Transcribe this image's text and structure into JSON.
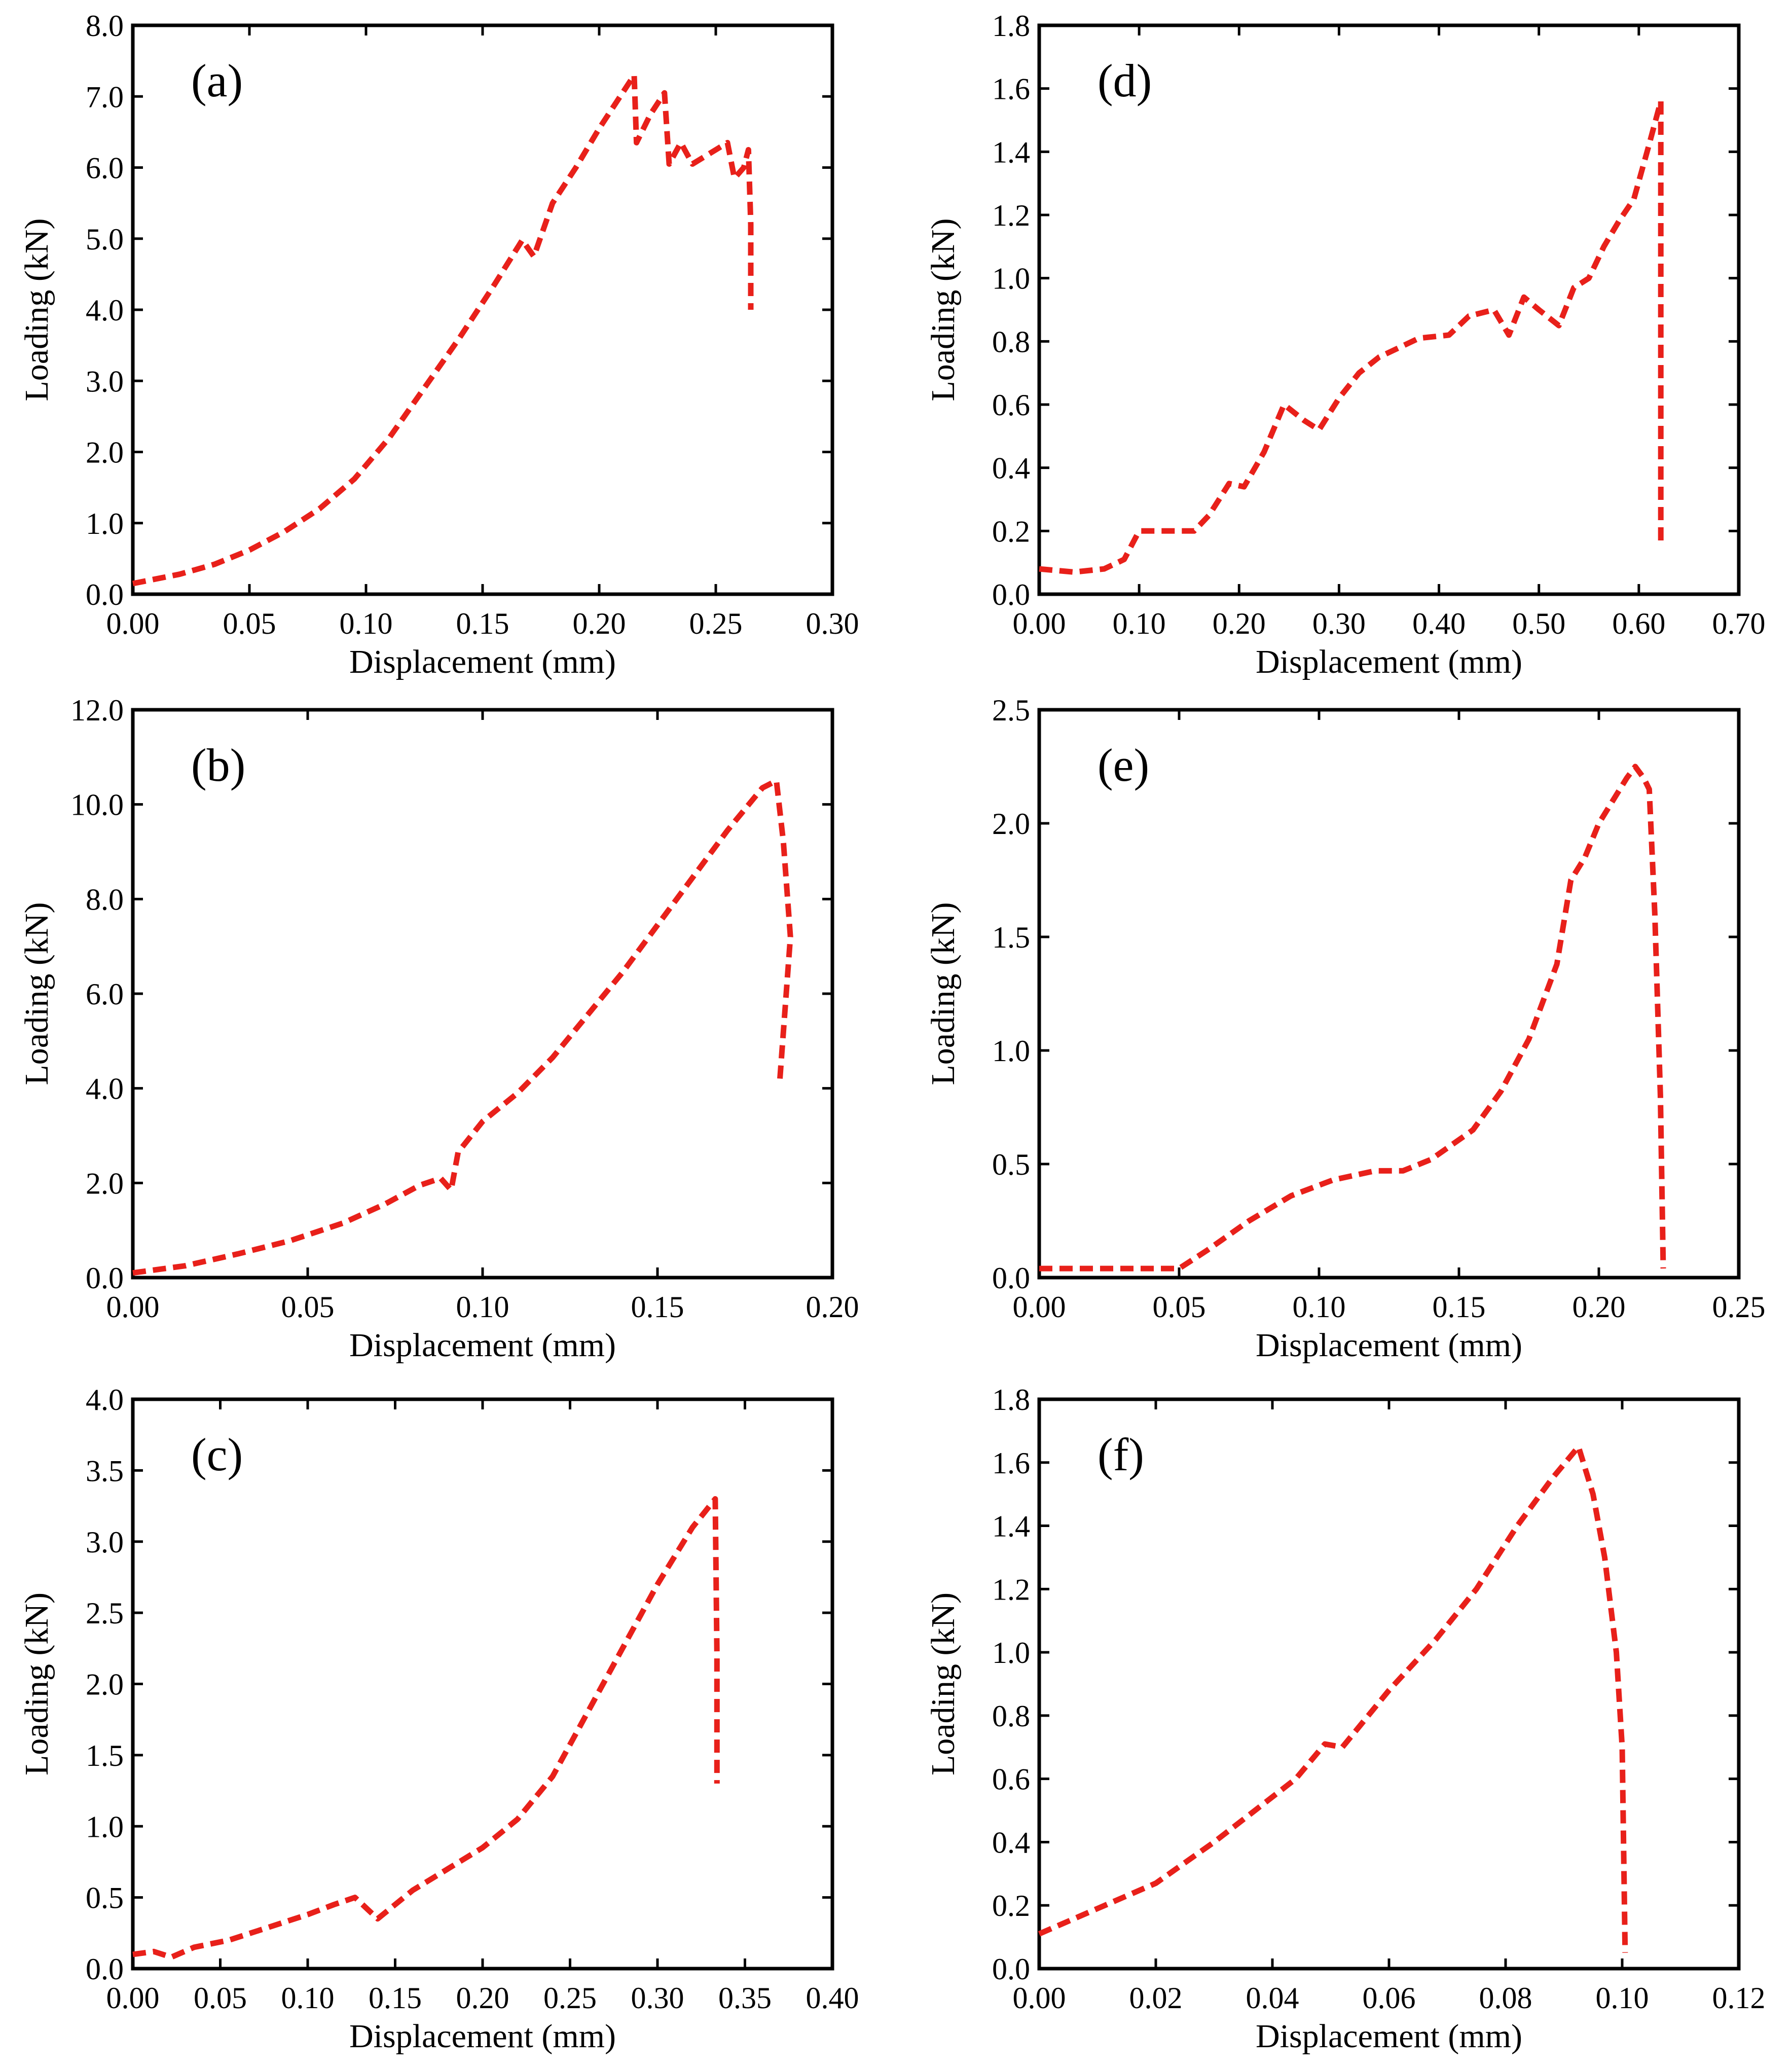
{
  "figure": {
    "line_color": "#e8201a",
    "line_style": "dashed",
    "axis_color": "#000000"
  },
  "chart_data": [
    {
      "id": "a",
      "type": "line",
      "panel_label": "(a)",
      "xlabel": "Displacement (mm)",
      "ylabel": "Loading (kN)",
      "xlim": [
        0,
        0.3
      ],
      "ylim": [
        0,
        8.0
      ],
      "xticks": [
        0,
        0.05,
        0.1,
        0.15,
        0.2,
        0.25,
        0.3
      ],
      "yticks": [
        0,
        1.0,
        2.0,
        3.0,
        4.0,
        5.0,
        6.0,
        7.0,
        8.0
      ],
      "xtick_labels": [
        "0.00",
        "0.05",
        "0.10",
        "0.15",
        "0.20",
        "0.25",
        "0.30"
      ],
      "ytick_labels": [
        "0.0",
        "1.0",
        "2.0",
        "3.0",
        "4.0",
        "5.0",
        "6.0",
        "7.0",
        "8.0"
      ],
      "series": [
        {
          "name": "(a)",
          "x": [
            0.0,
            0.02,
            0.035,
            0.05,
            0.065,
            0.08,
            0.095,
            0.11,
            0.125,
            0.14,
            0.155,
            0.167,
            0.172,
            0.18,
            0.19,
            0.2,
            0.21,
            0.215,
            0.216,
            0.222,
            0.228,
            0.23,
            0.235,
            0.24,
            0.25,
            0.255,
            0.258,
            0.262,
            0.264,
            0.265,
            0.265
          ],
          "y": [
            0.15,
            0.28,
            0.42,
            0.62,
            0.88,
            1.2,
            1.62,
            2.2,
            2.9,
            3.6,
            4.35,
            4.98,
            4.75,
            5.5,
            6.0,
            6.55,
            7.05,
            7.3,
            6.35,
            6.75,
            7.05,
            6.05,
            6.35,
            6.05,
            6.25,
            6.35,
            5.85,
            6.0,
            6.25,
            5.2,
            4.0
          ]
        }
      ]
    },
    {
      "id": "b",
      "type": "line",
      "panel_label": "(b)",
      "xlabel": "Displacement (mm)",
      "ylabel": "Loading (kN)",
      "xlim": [
        0,
        0.2
      ],
      "ylim": [
        0,
        12.0
      ],
      "xticks": [
        0,
        0.05,
        0.1,
        0.15,
        0.2
      ],
      "yticks": [
        0,
        2.0,
        4.0,
        6.0,
        8.0,
        10.0,
        12.0
      ],
      "xtick_labels": [
        "0.00",
        "0.05",
        "0.10",
        "0.15",
        "0.20"
      ],
      "ytick_labels": [
        "0.0",
        "2.0",
        "4.0",
        "6.0",
        "8.0",
        "10.0",
        "12.0"
      ],
      "series": [
        {
          "name": "(b)",
          "x": [
            0.0,
            0.015,
            0.03,
            0.045,
            0.06,
            0.072,
            0.082,
            0.088,
            0.091,
            0.093,
            0.1,
            0.11,
            0.12,
            0.13,
            0.14,
            0.15,
            0.16,
            0.17,
            0.18,
            0.184,
            0.186,
            0.188,
            0.186,
            0.185
          ],
          "y": [
            0.1,
            0.25,
            0.5,
            0.78,
            1.15,
            1.55,
            1.95,
            2.1,
            1.85,
            2.65,
            3.3,
            3.9,
            4.65,
            5.55,
            6.45,
            7.45,
            8.45,
            9.45,
            10.35,
            10.5,
            9.2,
            7.2,
            5.2,
            4.2
          ]
        }
      ]
    },
    {
      "id": "c",
      "type": "line",
      "panel_label": "(c)",
      "xlabel": "Displacement (mm)",
      "ylabel": "Loading (kN)",
      "xlim": [
        0,
        0.4
      ],
      "ylim": [
        0,
        4.0
      ],
      "xticks": [
        0,
        0.05,
        0.1,
        0.15,
        0.2,
        0.25,
        0.3,
        0.35,
        0.4
      ],
      "yticks": [
        0,
        0.5,
        1.0,
        1.5,
        2.0,
        2.5,
        3.0,
        3.5,
        4.0
      ],
      "xtick_labels": [
        "0.00",
        "0.05",
        "0.10",
        "0.15",
        "0.20",
        "0.25",
        "0.30",
        "0.35",
        "0.40"
      ],
      "ytick_labels": [
        "0.0",
        "0.5",
        "1.0",
        "1.5",
        "2.0",
        "2.5",
        "3.0",
        "3.5",
        "4.0"
      ],
      "series": [
        {
          "name": "(c)",
          "x": [
            0.0,
            0.012,
            0.022,
            0.035,
            0.055,
            0.075,
            0.1,
            0.115,
            0.127,
            0.14,
            0.16,
            0.18,
            0.2,
            0.22,
            0.24,
            0.26,
            0.28,
            0.3,
            0.32,
            0.333,
            0.334,
            0.334
          ],
          "y": [
            0.1,
            0.12,
            0.08,
            0.15,
            0.2,
            0.28,
            0.38,
            0.45,
            0.5,
            0.35,
            0.55,
            0.7,
            0.85,
            1.05,
            1.35,
            1.8,
            2.25,
            2.7,
            3.1,
            3.3,
            2.2,
            1.3
          ]
        }
      ]
    },
    {
      "id": "d",
      "type": "line",
      "panel_label": "(d)",
      "xlabel": "Displacement (mm)",
      "ylabel": "Loading (kN)",
      "xlim": [
        0,
        0.7
      ],
      "ylim": [
        0,
        1.8
      ],
      "xticks": [
        0,
        0.1,
        0.2,
        0.3,
        0.4,
        0.5,
        0.6,
        0.7
      ],
      "yticks": [
        0,
        0.2,
        0.4,
        0.6,
        0.8,
        1.0,
        1.2,
        1.4,
        1.6,
        1.8
      ],
      "xtick_labels": [
        "0.00",
        "0.10",
        "0.20",
        "0.30",
        "0.40",
        "0.50",
        "0.60",
        "0.70"
      ],
      "ytick_labels": [
        "0.0",
        "0.2",
        "0.4",
        "0.6",
        "0.8",
        "1.0",
        "1.2",
        "1.4",
        "1.6",
        "1.8"
      ],
      "series": [
        {
          "name": "(d)",
          "x": [
            0.0,
            0.035,
            0.065,
            0.085,
            0.1,
            0.125,
            0.155,
            0.17,
            0.19,
            0.205,
            0.225,
            0.245,
            0.265,
            0.28,
            0.3,
            0.32,
            0.34,
            0.36,
            0.38,
            0.41,
            0.43,
            0.455,
            0.47,
            0.485,
            0.5,
            0.52,
            0.535,
            0.55,
            0.565,
            0.58,
            0.595,
            0.61,
            0.622,
            0.622,
            0.622
          ],
          "y": [
            0.08,
            0.07,
            0.08,
            0.11,
            0.2,
            0.2,
            0.2,
            0.25,
            0.35,
            0.34,
            0.45,
            0.6,
            0.55,
            0.52,
            0.62,
            0.7,
            0.75,
            0.78,
            0.81,
            0.82,
            0.88,
            0.9,
            0.82,
            0.94,
            0.9,
            0.85,
            0.97,
            1.0,
            1.1,
            1.18,
            1.25,
            1.42,
            1.56,
            0.8,
            0.16
          ]
        }
      ]
    },
    {
      "id": "e",
      "type": "line",
      "panel_label": "(e)",
      "xlabel": "Displacement (mm)",
      "ylabel": "Loading (kN)",
      "xlim": [
        0,
        0.25
      ],
      "ylim": [
        0,
        2.5
      ],
      "xticks": [
        0,
        0.05,
        0.1,
        0.15,
        0.2,
        0.25
      ],
      "yticks": [
        0,
        0.5,
        1.0,
        1.5,
        2.0,
        2.5
      ],
      "xtick_labels": [
        "0.00",
        "0.05",
        "0.10",
        "0.15",
        "0.20",
        "0.25"
      ],
      "ytick_labels": [
        "0.0",
        "0.5",
        "1.0",
        "1.5",
        "2.0",
        "2.5"
      ],
      "series": [
        {
          "name": "(e)",
          "x": [
            0.0,
            0.05,
            0.06,
            0.075,
            0.09,
            0.105,
            0.12,
            0.13,
            0.14,
            0.155,
            0.165,
            0.175,
            0.185,
            0.19,
            0.195,
            0.2,
            0.21,
            0.213,
            0.216,
            0.218,
            0.22,
            0.222,
            0.223
          ],
          "y": [
            0.04,
            0.04,
            0.12,
            0.25,
            0.36,
            0.43,
            0.47,
            0.47,
            0.52,
            0.65,
            0.82,
            1.05,
            1.38,
            1.75,
            1.85,
            2.0,
            2.2,
            2.25,
            2.2,
            2.15,
            1.6,
            0.8,
            0.04
          ]
        }
      ]
    },
    {
      "id": "f",
      "type": "line",
      "panel_label": "(f)",
      "xlabel": "Displacement (mm)",
      "ylabel": "Loading (kN)",
      "xlim": [
        0,
        0.12
      ],
      "ylim": [
        0,
        1.8
      ],
      "xticks": [
        0,
        0.02,
        0.04,
        0.06,
        0.08,
        0.1,
        0.12
      ],
      "yticks": [
        0,
        0.2,
        0.4,
        0.6,
        0.8,
        1.0,
        1.2,
        1.4,
        1.6,
        1.8
      ],
      "xtick_labels": [
        "0.00",
        "0.02",
        "0.04",
        "0.06",
        "0.08",
        "0.10",
        "0.12"
      ],
      "ytick_labels": [
        "0.0",
        "0.2",
        "0.4",
        "0.6",
        "0.8",
        "1.0",
        "1.2",
        "1.4",
        "1.6",
        "1.8"
      ],
      "series": [
        {
          "name": "(f)",
          "x": [
            0.0,
            0.01,
            0.02,
            0.03,
            0.037,
            0.044,
            0.049,
            0.052,
            0.06,
            0.068,
            0.075,
            0.082,
            0.088,
            0.0925,
            0.095,
            0.097,
            0.099,
            0.1,
            0.1005
          ],
          "y": [
            0.11,
            0.19,
            0.27,
            0.4,
            0.5,
            0.6,
            0.71,
            0.7,
            0.88,
            1.04,
            1.2,
            1.4,
            1.55,
            1.65,
            1.5,
            1.3,
            1.0,
            0.7,
            0.05
          ]
        }
      ]
    }
  ]
}
